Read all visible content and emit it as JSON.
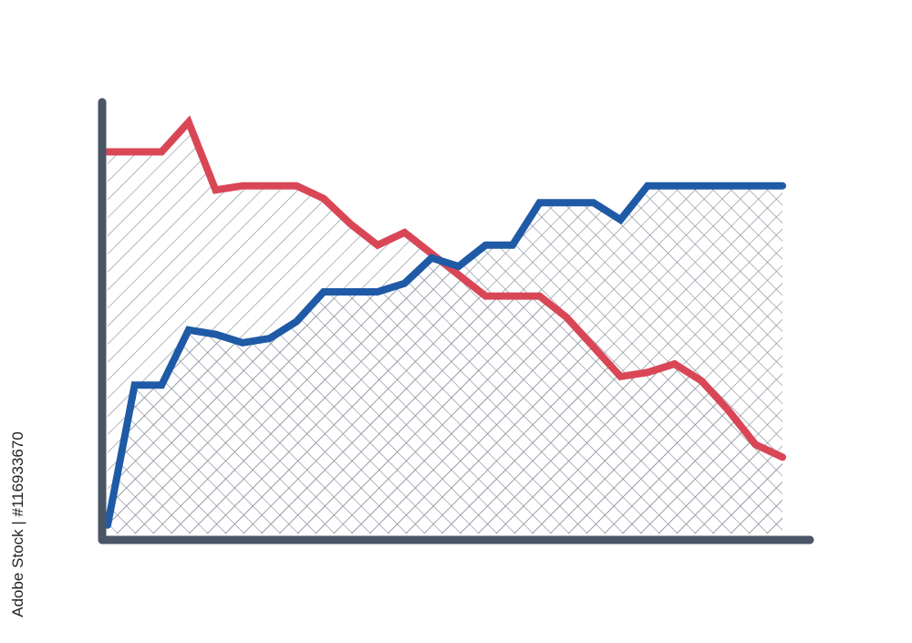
{
  "chart_data": {
    "type": "area",
    "title": "",
    "xlabel": "",
    "ylabel": "",
    "x": [
      0,
      1,
      2,
      3,
      4,
      5,
      6,
      7,
      8,
      9,
      10,
      11,
      12,
      13,
      14,
      15,
      16,
      17,
      18,
      19,
      20,
      21,
      22,
      23,
      24,
      25
    ],
    "xlim": [
      0,
      25
    ],
    "ylim": [
      0,
      100
    ],
    "grid": false,
    "legend": "none",
    "series": [
      {
        "color": "#d94757",
        "hatch": "diagonal",
        "values": [
          90,
          90,
          90,
          97,
          81,
          82,
          82,
          82,
          79,
          73,
          68,
          71,
          66,
          61,
          56,
          56,
          56,
          51,
          44,
          37,
          38,
          40,
          36,
          29,
          21,
          18
        ]
      },
      {
        "color": "#1f5aa6",
        "hatch": "cross",
        "values": [
          2,
          35,
          35,
          48,
          47,
          45,
          46,
          50,
          57,
          57,
          57,
          59,
          65,
          63,
          68,
          68,
          78,
          78,
          78,
          74,
          82,
          82,
          82,
          82,
          82,
          82
        ]
      }
    ],
    "axis_color": "#4a5566",
    "hatch_color": "#7f8896"
  },
  "watermark": {
    "stock_id": "Adobe Stock | #116933670"
  }
}
